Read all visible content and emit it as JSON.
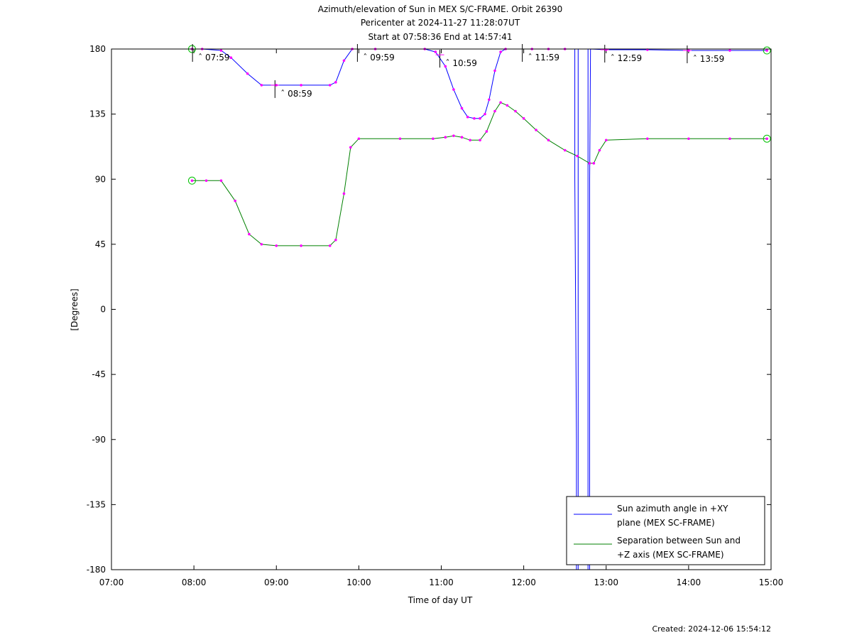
{
  "chart_data": {
    "type": "line",
    "title_lines": [
      "Azimuth/elevation of Sun in MEX S/C-FRAME.  Orbit 26390",
      "Pericenter at 2024-11-27 11:28:07UT",
      "Start at 07:58:36 End at 14:57:41"
    ],
    "xlabel": "Time of day UT",
    "ylabel": "[Degrees]",
    "xlim": [
      7,
      15
    ],
    "ylim": [
      -180,
      180
    ],
    "x_ticks": [
      7,
      8,
      9,
      10,
      11,
      12,
      13,
      14,
      15
    ],
    "x_tick_labels": [
      "07:00",
      "08:00",
      "09:00",
      "10:00",
      "11:00",
      "12:00",
      "13:00",
      "14:00",
      "15:00"
    ],
    "y_ticks": [
      180,
      135,
      90,
      45,
      0,
      -45,
      -90,
      -135,
      -180
    ],
    "y_tick_labels": [
      "180",
      "135",
      "90",
      "45",
      "0",
      "-45",
      "-90",
      "-135",
      "-180"
    ],
    "grid": false,
    "legend_position": "bottom-right",
    "series": [
      {
        "name": "Sun azimuth angle in +XY plane (MEX SC-FRAME)",
        "color": "#0000ff",
        "points": [
          [
            7.977,
            180
          ],
          [
            8.1,
            180
          ],
          [
            8.33,
            179
          ],
          [
            8.45,
            174
          ],
          [
            8.65,
            163
          ],
          [
            8.82,
            155
          ],
          [
            9.0,
            155
          ],
          [
            9.3,
            155
          ],
          [
            9.65,
            155
          ],
          [
            9.72,
            157
          ],
          [
            9.82,
            172
          ],
          [
            9.92,
            180
          ],
          [
            10.2,
            180
          ],
          [
            10.8,
            180
          ],
          [
            10.93,
            178
          ],
          [
            11.05,
            168
          ],
          [
            11.15,
            152
          ],
          [
            11.25,
            139
          ],
          [
            11.32,
            133
          ],
          [
            11.4,
            132
          ],
          [
            11.47,
            132
          ],
          [
            11.53,
            135
          ],
          [
            11.58,
            145
          ],
          [
            11.65,
            165
          ],
          [
            11.72,
            178
          ],
          [
            11.78,
            180
          ],
          [
            12.1,
            180
          ],
          [
            12.3,
            180
          ],
          [
            12.5,
            180
          ],
          [
            12.62,
            180
          ],
          [
            12.62,
            90
          ],
          [
            12.64,
            -90
          ],
          [
            12.64,
            -180
          ],
          [
            12.66,
            -180
          ],
          [
            12.66,
            180
          ],
          [
            12.78,
            180
          ],
          [
            12.78,
            -180
          ],
          [
            12.8,
            -180
          ],
          [
            12.8,
            90
          ],
          [
            12.81,
            180
          ],
          [
            13.0,
            179.5
          ],
          [
            13.5,
            179.5
          ],
          [
            14.0,
            179
          ],
          [
            14.5,
            179
          ],
          [
            14.95,
            179
          ]
        ]
      },
      {
        "name": "Separation between Sun and +Z axis (MEX SC-FRAME)",
        "color": "#008000",
        "points": [
          [
            7.977,
            89
          ],
          [
            8.15,
            89
          ],
          [
            8.33,
            89
          ],
          [
            8.5,
            75
          ],
          [
            8.67,
            52
          ],
          [
            8.82,
            45
          ],
          [
            9.0,
            44
          ],
          [
            9.3,
            44
          ],
          [
            9.65,
            44
          ],
          [
            9.72,
            48
          ],
          [
            9.82,
            80
          ],
          [
            9.9,
            112
          ],
          [
            10.0,
            118
          ],
          [
            10.5,
            118
          ],
          [
            10.9,
            118
          ],
          [
            11.05,
            119
          ],
          [
            11.15,
            120
          ],
          [
            11.25,
            119
          ],
          [
            11.35,
            117
          ],
          [
            11.47,
            117
          ],
          [
            11.55,
            123
          ],
          [
            11.65,
            137
          ],
          [
            11.72,
            143
          ],
          [
            11.8,
            141
          ],
          [
            11.9,
            137
          ],
          [
            12.0,
            132
          ],
          [
            12.15,
            124
          ],
          [
            12.3,
            117
          ],
          [
            12.5,
            110
          ],
          [
            12.65,
            106
          ],
          [
            12.8,
            101
          ],
          [
            12.85,
            101
          ],
          [
            12.92,
            110
          ],
          [
            13.0,
            117
          ],
          [
            13.5,
            118
          ],
          [
            14.0,
            118
          ],
          [
            14.5,
            118
          ],
          [
            14.95,
            118
          ]
        ]
      }
    ],
    "hour_markers": [
      "07:59",
      "08:59",
      "09:59",
      "10:59",
      "11:59",
      "12:59",
      "13:59"
    ],
    "created_label": "Created: 2024-12-06 15:54:12"
  }
}
